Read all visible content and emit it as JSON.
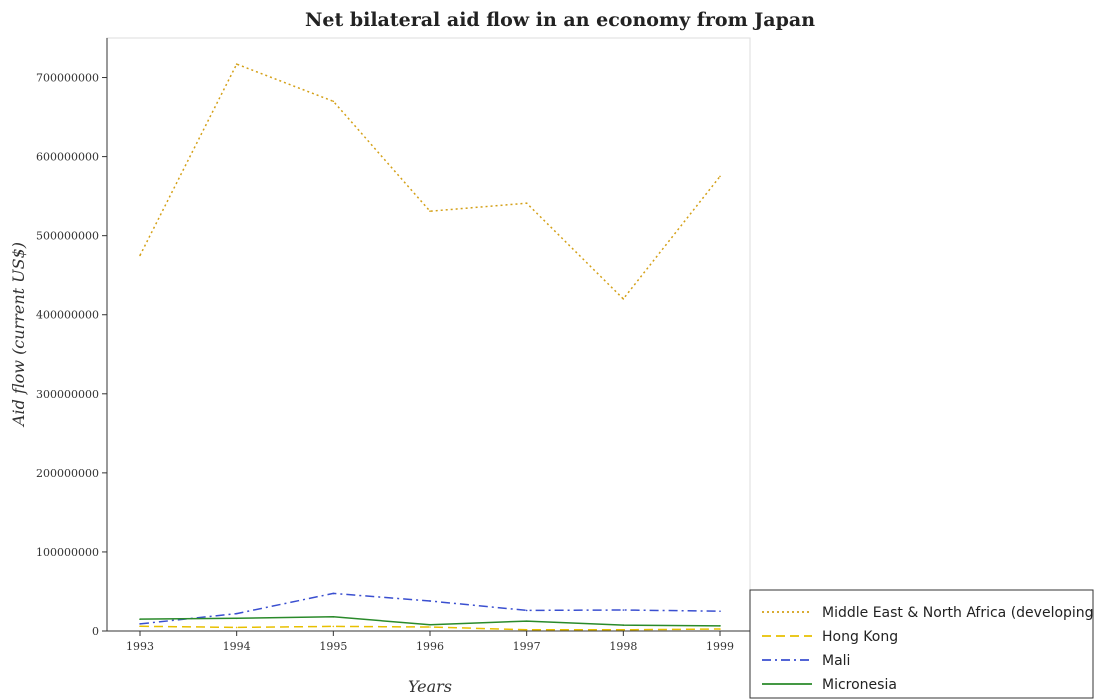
{
  "chart_data": {
    "type": "line",
    "title": "Net bilateral aid flow in an economy from Japan",
    "xlabel": "Years",
    "ylabel": "Aid flow (current US$)",
    "categories": [
      "1993",
      "1994",
      "1995",
      "1996",
      "1997",
      "1998",
      "1999"
    ],
    "ylim": [
      0,
      750000000
    ],
    "yticks": [
      {
        "value": 0,
        "label": "0"
      },
      {
        "value": 100000000,
        "label": "100000000"
      },
      {
        "value": 200000000,
        "label": "200000000"
      },
      {
        "value": 300000000,
        "label": "300000000"
      },
      {
        "value": 400000000,
        "label": "400000000"
      },
      {
        "value": 500000000,
        "label": "500000000"
      },
      {
        "value": 600000000,
        "label": "600000000"
      },
      {
        "value": 700000000,
        "label": "700000000"
      }
    ],
    "legend_position": "bottom-right",
    "grid": false,
    "series": [
      {
        "name": "Middle East & North Africa (developing only)",
        "color": "#d4a017",
        "dash": "2,3",
        "values": [
          475000000,
          717000000,
          670000000,
          531000000,
          541000000,
          420000000,
          575000000
        ]
      },
      {
        "name": "Hong Kong",
        "color": "#e8c000",
        "dash": "9,5",
        "values": [
          6000000,
          4500000,
          5800000,
          5000000,
          1500000,
          1500000,
          2500000
        ]
      },
      {
        "name": "Mali",
        "color": "#3a4fd0",
        "dash": "9,4,2,4",
        "values": [
          9000000,
          22000000,
          47500000,
          38000000,
          26000000,
          26500000,
          25000000
        ]
      },
      {
        "name": "Micronesia",
        "color": "#2a8a2a",
        "dash": "",
        "values": [
          15000000,
          16000000,
          18000000,
          8000000,
          12500000,
          7500000,
          6500000
        ]
      }
    ]
  }
}
